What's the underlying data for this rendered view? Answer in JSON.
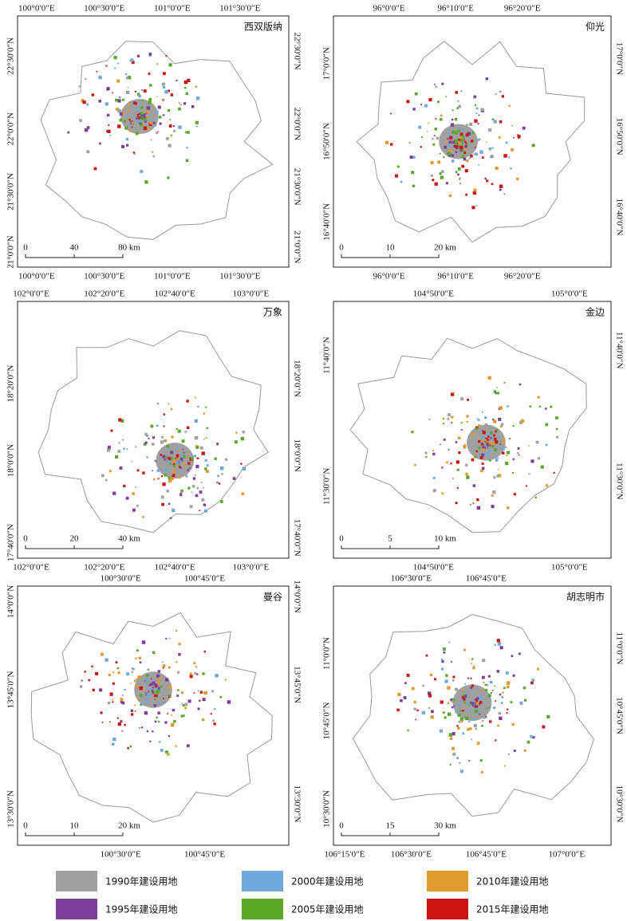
{
  "panels": [
    {
      "title": "西双版纳",
      "top_labels": [
        "100°0′0″E",
        "100°30′0″E",
        "101°0′0″E",
        "101°30′0″E"
      ],
      "bottom_labels": [
        "100°0′0″E",
        "100°30′0″E",
        "101°0′0″E",
        "101°30′0″E"
      ],
      "left_labels": [
        "22°30′0″N",
        "22°0′0″N",
        "21°30′0″N",
        "21°0′0″N"
      ],
      "right_labels": [
        "22°30′0″N",
        "22°0′0″N",
        "21°30′0″N",
        "21°0′0″N"
      ],
      "scale_labels": [
        "0",
        "40",
        "80 km"
      ]
    },
    {
      "title": "仰光",
      "top_labels": [
        "96°0′0″E",
        "96°10′0″E",
        "96°20′0″E"
      ],
      "bottom_labels": [
        "96°0′0″E",
        "96°10′0″E",
        "96°20′0″E"
      ],
      "left_labels": [
        "17°0′0″N",
        "16°50′0″N",
        "16°40′0″N"
      ],
      "right_labels": [
        "17°0′0″N",
        "16°50′0″N",
        "16°40′0″N"
      ],
      "scale_labels": [
        "0",
        "10",
        "20 km"
      ]
    },
    {
      "title": "万象",
      "top_labels": [
        "102°0′0″E",
        "102°20′0″E",
        "102°40′0″E",
        "103°0′0″E"
      ],
      "bottom_labels": [
        "102°0′0″E",
        "102°20′0″E",
        "102°40′0″E",
        "103°0′0″E"
      ],
      "left_labels": [
        "18°20′0″N",
        "18°0′0″N",
        "17°40′0″N"
      ],
      "right_labels": [
        "18°20′0″N",
        "18°0′0″N",
        "17°40′0″N"
      ],
      "scale_labels": [
        "0",
        "20",
        "40 km"
      ]
    },
    {
      "title": "金边",
      "top_labels": [
        "104°50′0″E",
        "105°0′0″E"
      ],
      "bottom_labels": [
        "104°50′0″E",
        "105°0′0″E"
      ],
      "left_labels": [
        "11°40′0″N",
        "11°30′0″N"
      ],
      "right_labels": [
        "11°40′0″N",
        "11°30′0″N"
      ],
      "scale_labels": [
        "0",
        "5",
        "10 km"
      ]
    },
    {
      "title": "曼谷",
      "top_labels": [
        "100°30′0″E",
        "100°45′0″E"
      ],
      "bottom_labels": [
        "100°30′0″E",
        "100°45′0″E"
      ],
      "left_labels": [
        "14°0′0″N",
        "13°45′0″N",
        "13°30′0″N"
      ],
      "right_labels": [
        "14°0′0″N",
        "13°45′0″N",
        "13°30′0″N"
      ],
      "scale_labels": [
        "0",
        "10",
        "20 km"
      ]
    },
    {
      "title": "胡志明市",
      "top_labels": [
        "106°30′0″E",
        "106°45′0″E"
      ],
      "bottom_labels": [
        "106°15′0″E",
        "106°30′0″E",
        "106°45′0″E",
        "107°0′0″E"
      ],
      "left_labels": [
        "11°0′0″N",
        "10°45′0″N",
        "10°30′0″N"
      ],
      "right_labels": [
        "11°0′0″N",
        "10°45′0″N",
        "10°30′0″N"
      ],
      "scale_labels": [
        "0",
        "15",
        "30 km"
      ]
    }
  ],
  "legend": [
    {
      "label": "1990年建设用地",
      "color": "#a0a0a0"
    },
    {
      "label": "2000年建设用地",
      "color": "#6fa8dc"
    },
    {
      "label": "2010年建设用地",
      "color": "#e09a2e"
    },
    {
      "label": "1995年建设用地",
      "color": "#7b3f9a"
    },
    {
      "label": "2005年建设用地",
      "color": "#5aa82a"
    },
    {
      "label": "2015年建设用地",
      "color": "#cc1414"
    }
  ]
}
